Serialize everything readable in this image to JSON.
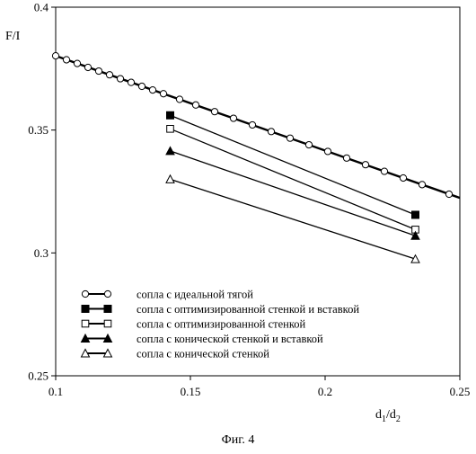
{
  "chart_data": {
    "type": "line",
    "title": "",
    "ylabel": "F/I",
    "xlabel_main": "d",
    "xlabel_sub1": "1",
    "xlabel_slash": "/d",
    "xlabel_sub2": "2",
    "caption": "Фиг. 4",
    "xlim": [
      0.1,
      0.25
    ],
    "ylim": [
      0.25,
      0.4
    ],
    "xticks": [
      0.1,
      0.15,
      0.2,
      0.25
    ],
    "xtick_labels": [
      "0.1",
      "0.15",
      "0.2",
      "0.25"
    ],
    "yticks": [
      0.25,
      0.3,
      0.35,
      0.4
    ],
    "ytick_labels": [
      "0.25",
      "0.3",
      "0.35",
      "0.4"
    ],
    "grid": false,
    "legend_placement": "bottom-left inside plot",
    "series": [
      {
        "name": "сопла с идеальной тягой",
        "marker": "open-circle",
        "x_line": [
          0.1,
          0.25
        ],
        "y_line": [
          0.3802,
          0.3224
        ],
        "x": [
          0.1,
          0.104,
          0.108,
          0.112,
          0.116,
          0.12,
          0.124,
          0.128,
          0.132,
          0.136,
          0.14,
          0.146,
          0.152,
          0.159,
          0.166,
          0.173,
          0.18,
          0.187,
          0.194,
          0.201,
          0.208,
          0.215,
          0.222,
          0.229,
          0.236,
          0.246
        ],
        "y": [
          0.3802,
          0.3786,
          0.3771,
          0.3755,
          0.374,
          0.3725,
          0.3709,
          0.3694,
          0.3678,
          0.3663,
          0.3648,
          0.3625,
          0.3602,
          0.3575,
          0.3548,
          0.3521,
          0.3494,
          0.3467,
          0.344,
          0.3413,
          0.3386,
          0.3359,
          0.3332,
          0.3305,
          0.3278,
          0.3239
        ]
      },
      {
        "name": "сопла с оптимизированной стенкой и вставкой",
        "marker": "filled-square",
        "x": [
          0.1425,
          0.2335
        ],
        "y": [
          0.356,
          0.3155
        ]
      },
      {
        "name": "сопла с оптимизированной стенкой",
        "marker": "open-square",
        "x": [
          0.1425,
          0.2335
        ],
        "y": [
          0.3505,
          0.3095
        ]
      },
      {
        "name": "сопла с конической стенкой и вставкой",
        "marker": "filled-triangle",
        "x": [
          0.1425,
          0.2335
        ],
        "y": [
          0.3415,
          0.307
        ]
      },
      {
        "name": "сопла с конической стенкой",
        "marker": "open-triangle",
        "x": [
          0.1425,
          0.2335
        ],
        "y": [
          0.33,
          0.2975
        ]
      }
    ],
    "legend": [
      {
        "label": "сопла с идеальной тягой",
        "marker": "open-circle"
      },
      {
        "label": "сопла с оптимизированной стенкой и вставкой",
        "marker": "filled-square"
      },
      {
        "label": "сопла с оптимизированной стенкой",
        "marker": "open-square"
      },
      {
        "label": "сопла с конической стенкой и вставкой",
        "marker": "filled-triangle"
      },
      {
        "label": "сопла с конической стенкой",
        "marker": "open-triangle"
      }
    ],
    "colors": {
      "ink": "#000000",
      "background": "#ffffff"
    }
  }
}
